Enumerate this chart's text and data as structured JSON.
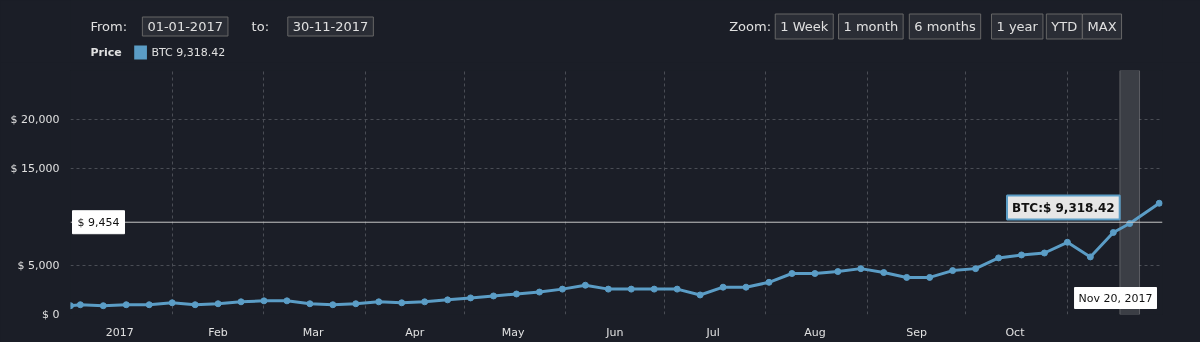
{
  "chart_data": {
    "type": "line",
    "annotations": [
      "From:",
      "01-01-2017",
      "to:",
      "30-11-2017",
      "Zoom:",
      "1 Week",
      "1 month",
      "6 months",
      "1 year",
      "YTD",
      "MAX",
      {
        "text": "BTC:$ 9,318.42",
        "x": "2017-11-20",
        "y": 9318.42
      },
      "Nov 20, 2017"
    ],
    "legend_title": "Price",
    "x": [
      "2017-01-01",
      "2017-01-04",
      "2017-01-11",
      "2017-01-18",
      "2017-01-25",
      "2017-02-01",
      "2017-02-08",
      "2017-02-15",
      "2017-02-22",
      "2017-03-01",
      "2017-03-08",
      "2017-03-15",
      "2017-03-22",
      "2017-03-29",
      "2017-04-05",
      "2017-04-12",
      "2017-04-19",
      "2017-04-26",
      "2017-05-03",
      "2017-05-10",
      "2017-05-17",
      "2017-05-24",
      "2017-05-31",
      "2017-06-07",
      "2017-06-14",
      "2017-06-21",
      "2017-06-28",
      "2017-07-05",
      "2017-07-12",
      "2017-07-19",
      "2017-07-26",
      "2017-08-02",
      "2017-08-09",
      "2017-08-16",
      "2017-08-23",
      "2017-08-30",
      "2017-09-06",
      "2017-09-13",
      "2017-09-20",
      "2017-09-27",
      "2017-10-04",
      "2017-10-11",
      "2017-10-18",
      "2017-10-25",
      "2017-11-01",
      "2017-11-08",
      "2017-11-15",
      "2017-11-20",
      "2017-11-29"
    ],
    "series": [
      {
        "name": "BTC 9,318.42",
        "color": "#5b9dc6",
        "values": [
          900,
          1000,
          900,
          1000,
          1000,
          1200,
          1000,
          1100,
          1300,
          1400,
          1400,
          1100,
          1000,
          1100,
          1300,
          1200,
          1300,
          1500,
          1700,
          1900,
          2100,
          2300,
          2600,
          3000,
          2600,
          2600,
          2600,
          2600,
          2000,
          2800,
          2800,
          3300,
          4200,
          4200,
          4400,
          4700,
          4300,
          3800,
          3800,
          4500,
          4700,
          5800,
          6100,
          6300,
          7400,
          5900,
          8400,
          9318.42,
          11400
        ]
      }
    ],
    "xlim": [
      "2017-01-01",
      "2017-11-30"
    ],
    "xticks": [
      {
        "value": "2017-02-01",
        "label": null
      },
      {
        "value": "2017-03-01",
        "label": null
      },
      {
        "value": "2017-04-01",
        "label": null
      },
      {
        "value": "2017-05-01",
        "label": null
      },
      {
        "value": "2017-06-01",
        "label": null
      },
      {
        "value": "2017-07-01",
        "label": null
      },
      {
        "value": "2017-08-01",
        "label": null
      },
      {
        "value": "2017-09-01",
        "label": null
      },
      {
        "value": "2017-10-01",
        "label": null
      },
      {
        "value": "2017-11-01",
        "label": null
      },
      {
        "value": "2017-01-16",
        "label": "2017"
      },
      {
        "value": "2017-02-15",
        "label": "Feb"
      },
      {
        "value": "2017-03-16",
        "label": "Mar"
      },
      {
        "value": "2017-04-16",
        "label": "Apr"
      },
      {
        "value": "2017-05-16",
        "label": "May"
      },
      {
        "value": "2017-06-16",
        "label": "Jun"
      },
      {
        "value": "2017-07-16",
        "label": "Jul"
      },
      {
        "value": "2017-08-16",
        "label": "Aug"
      },
      {
        "value": "2017-09-16",
        "label": "Sep"
      },
      {
        "value": "2017-10-16",
        "label": "Oct"
      }
    ],
    "ylim": [
      0,
      25000
    ],
    "yticks": [
      {
        "value": 0,
        "label": "$ 0"
      },
      {
        "value": 5000,
        "label": "$ 5,000"
      },
      {
        "value": 15000,
        "label": "$ 15,000"
      },
      {
        "value": 20000,
        "label": "$ 20,000"
      }
    ],
    "ref_lines": [
      {
        "axis": "y",
        "value": 9454,
        "label": "$ 9,454",
        "color": "#c8c8c8"
      }
    ],
    "bands": [
      {
        "axis": "x",
        "from": "2017-11-17",
        "to": "2017-11-23",
        "color": "#3b3e45"
      }
    ],
    "grid": true,
    "legend": "top left",
    "marker": "circle",
    "line_style": "solid"
  }
}
